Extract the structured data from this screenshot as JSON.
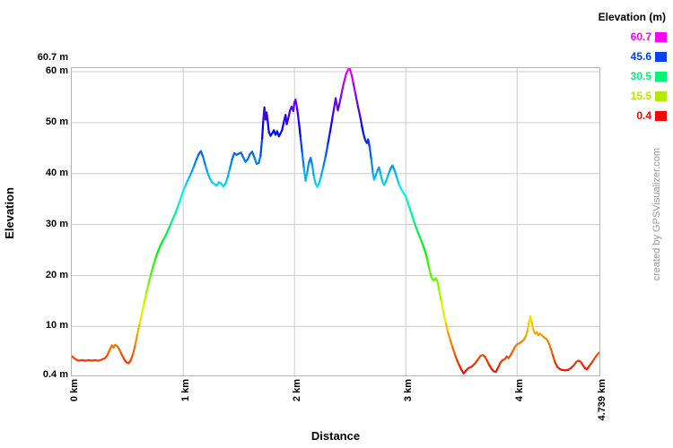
{
  "watermark": "created by GPSVisualizer.com",
  "chart_data": {
    "type": "line",
    "title": "",
    "xlabel": "Distance",
    "ylabel": "Elevation",
    "x_unit": "km",
    "y_unit": "m",
    "xlim": [
      0,
      4.739
    ],
    "ylim": [
      0.4,
      60.7
    ],
    "grid": true,
    "x_ticks": [
      {
        "value": 0,
        "label": "0 km"
      },
      {
        "value": 1,
        "label": "1 km"
      },
      {
        "value": 2,
        "label": "2 km"
      },
      {
        "value": 3,
        "label": "3 km"
      },
      {
        "value": 4,
        "label": "4 km"
      },
      {
        "value": 4.739,
        "label": "4.739 km"
      }
    ],
    "y_ticks": [
      {
        "value": 60.7,
        "label": "60.7 m"
      },
      {
        "value": 60,
        "label": "60 m"
      },
      {
        "value": 50,
        "label": "50 m"
      },
      {
        "value": 40,
        "label": "40 m"
      },
      {
        "value": 30,
        "label": "30 m"
      },
      {
        "value": 20,
        "label": "20 m"
      },
      {
        "value": 10,
        "label": "10 m"
      },
      {
        "value": 0.4,
        "label": "0.4 m"
      }
    ],
    "grid_x_km": [
      1,
      2,
      3,
      4
    ],
    "grid_y_m": [
      10,
      20,
      30,
      40,
      50,
      60
    ],
    "grid_color": "#cccccc",
    "border_color": "#b3b3b3",
    "color_scale": {
      "min_value": 0.4,
      "max_value": 60.7,
      "min_hue": 0,
      "max_hue": 300
    },
    "legend": {
      "title": "Elevation (m)",
      "position": "top-right",
      "entries": [
        {
          "label": "60.7",
          "color": "#ff00ff"
        },
        {
          "label": "45.6",
          "color": "#0040ff"
        },
        {
          "label": "30.5",
          "color": "#00f473"
        },
        {
          "label": "15.5",
          "color": "#b5e800"
        },
        {
          "label": "0.4",
          "color": "#ff0000"
        }
      ]
    },
    "profile_xy_km_m": [
      [
        0.0,
        4.2
      ],
      [
        0.02,
        3.8
      ],
      [
        0.04,
        3.5
      ],
      [
        0.06,
        3.3
      ],
      [
        0.09,
        3.4
      ],
      [
        0.12,
        3.3
      ],
      [
        0.15,
        3.4
      ],
      [
        0.18,
        3.3
      ],
      [
        0.21,
        3.4
      ],
      [
        0.24,
        3.3
      ],
      [
        0.27,
        3.5
      ],
      [
        0.3,
        3.8
      ],
      [
        0.32,
        4.4
      ],
      [
        0.34,
        5.4
      ],
      [
        0.36,
        6.3
      ],
      [
        0.375,
        5.9
      ],
      [
        0.39,
        6.4
      ],
      [
        0.41,
        6.1
      ],
      [
        0.43,
        5.4
      ],
      [
        0.45,
        4.4
      ],
      [
        0.47,
        3.6
      ],
      [
        0.49,
        3.0
      ],
      [
        0.51,
        2.8
      ],
      [
        0.53,
        3.4
      ],
      [
        0.55,
        4.6
      ],
      [
        0.57,
        6.4
      ],
      [
        0.59,
        8.6
      ],
      [
        0.61,
        10.6
      ],
      [
        0.63,
        12.6
      ],
      [
        0.65,
        14.6
      ],
      [
        0.67,
        16.6
      ],
      [
        0.69,
        18.4
      ],
      [
        0.71,
        20.2
      ],
      [
        0.73,
        21.8
      ],
      [
        0.75,
        23.2
      ],
      [
        0.77,
        24.5
      ],
      [
        0.79,
        25.6
      ],
      [
        0.81,
        26.5
      ],
      [
        0.83,
        27.3
      ],
      [
        0.85,
        28.2
      ],
      [
        0.87,
        29.2
      ],
      [
        0.89,
        30.2
      ],
      [
        0.91,
        31.2
      ],
      [
        0.93,
        32.2
      ],
      [
        0.95,
        33.4
      ],
      [
        0.97,
        34.6
      ],
      [
        1.0,
        36.6
      ],
      [
        1.02,
        37.6
      ],
      [
        1.04,
        38.6
      ],
      [
        1.06,
        39.5
      ],
      [
        1.08,
        40.5
      ],
      [
        1.1,
        41.6
      ],
      [
        1.12,
        42.8
      ],
      [
        1.14,
        43.8
      ],
      [
        1.16,
        44.4
      ],
      [
        1.18,
        43.2
      ],
      [
        1.2,
        41.6
      ],
      [
        1.22,
        40.2
      ],
      [
        1.24,
        39.0
      ],
      [
        1.26,
        38.3
      ],
      [
        1.28,
        38.0
      ],
      [
        1.3,
        37.6
      ],
      [
        1.32,
        38.3
      ],
      [
        1.34,
        38.1
      ],
      [
        1.36,
        37.5
      ],
      [
        1.38,
        38.0
      ],
      [
        1.4,
        39.3
      ],
      [
        1.42,
        41.0
      ],
      [
        1.44,
        42.8
      ],
      [
        1.46,
        44.0
      ],
      [
        1.48,
        43.7
      ],
      [
        1.5,
        43.9
      ],
      [
        1.52,
        44.1
      ],
      [
        1.54,
        43.2
      ],
      [
        1.56,
        42.3
      ],
      [
        1.58,
        42.8
      ],
      [
        1.6,
        43.8
      ],
      [
        1.62,
        44.3
      ],
      [
        1.64,
        43.2
      ],
      [
        1.66,
        41.9
      ],
      [
        1.68,
        42.1
      ],
      [
        1.695,
        43.5
      ],
      [
        1.71,
        47.0
      ],
      [
        1.72,
        50.5
      ],
      [
        1.73,
        53.0
      ],
      [
        1.74,
        50.6
      ],
      [
        1.75,
        52.0
      ],
      [
        1.76,
        50.2
      ],
      [
        1.77,
        48.2
      ],
      [
        1.785,
        47.4
      ],
      [
        1.8,
        47.9
      ],
      [
        1.815,
        48.5
      ],
      [
        1.83,
        47.6
      ],
      [
        1.845,
        48.3
      ],
      [
        1.86,
        47.3
      ],
      [
        1.875,
        47.9
      ],
      [
        1.89,
        48.6
      ],
      [
        1.905,
        50.2
      ],
      [
        1.92,
        51.5
      ],
      [
        1.93,
        49.7
      ],
      [
        1.945,
        50.9
      ],
      [
        1.96,
        52.4
      ],
      [
        1.975,
        53.1
      ],
      [
        1.99,
        52.3
      ],
      [
        2.0,
        54.0
      ],
      [
        2.01,
        54.5
      ],
      [
        2.025,
        52.6
      ],
      [
        2.04,
        50.0
      ],
      [
        2.055,
        47.0
      ],
      [
        2.07,
        44.0
      ],
      [
        2.085,
        41.0
      ],
      [
        2.1,
        38.6
      ],
      [
        2.115,
        40.3
      ],
      [
        2.13,
        42.2
      ],
      [
        2.145,
        43.1
      ],
      [
        2.16,
        41.6
      ],
      [
        2.175,
        39.4
      ],
      [
        2.19,
        38.0
      ],
      [
        2.205,
        37.4
      ],
      [
        2.22,
        38.0
      ],
      [
        2.24,
        39.6
      ],
      [
        2.26,
        41.4
      ],
      [
        2.28,
        43.4
      ],
      [
        2.3,
        45.8
      ],
      [
        2.32,
        48.2
      ],
      [
        2.34,
        50.8
      ],
      [
        2.355,
        52.8
      ],
      [
        2.37,
        54.8
      ],
      [
        2.38,
        53.6
      ],
      [
        2.39,
        52.4
      ],
      [
        2.405,
        53.8
      ],
      [
        2.42,
        55.4
      ],
      [
        2.435,
        57.0
      ],
      [
        2.45,
        58.4
      ],
      [
        2.465,
        59.6
      ],
      [
        2.48,
        60.3
      ],
      [
        2.49,
        60.7
      ],
      [
        2.5,
        60.4
      ],
      [
        2.515,
        59.2
      ],
      [
        2.53,
        57.6
      ],
      [
        2.55,
        55.4
      ],
      [
        2.57,
        53.2
      ],
      [
        2.59,
        51.2
      ],
      [
        2.605,
        49.4
      ],
      [
        2.62,
        47.8
      ],
      [
        2.635,
        46.6
      ],
      [
        2.65,
        46.0
      ],
      [
        2.662,
        46.7
      ],
      [
        2.675,
        45.2
      ],
      [
        2.69,
        42.8
      ],
      [
        2.705,
        40.0
      ],
      [
        2.715,
        38.8
      ],
      [
        2.73,
        39.6
      ],
      [
        2.745,
        40.6
      ],
      [
        2.76,
        41.2
      ],
      [
        2.775,
        39.8
      ],
      [
        2.79,
        38.4
      ],
      [
        2.805,
        37.8
      ],
      [
        2.82,
        38.4
      ],
      [
        2.84,
        39.6
      ],
      [
        2.86,
        40.8
      ],
      [
        2.88,
        41.6
      ],
      [
        2.9,
        40.6
      ],
      [
        2.92,
        39.2
      ],
      [
        2.94,
        37.8
      ],
      [
        2.96,
        36.9
      ],
      [
        2.98,
        36.2
      ],
      [
        3.0,
        35.5
      ],
      [
        3.02,
        34.2
      ],
      [
        3.05,
        32.2
      ],
      [
        3.08,
        30.2
      ],
      [
        3.11,
        28.4
      ],
      [
        3.14,
        26.8
      ],
      [
        3.17,
        25.0
      ],
      [
        3.19,
        23.4
      ],
      [
        3.21,
        21.4
      ],
      [
        3.23,
        19.6
      ],
      [
        3.25,
        19.0
      ],
      [
        3.27,
        19.5
      ],
      [
        3.285,
        18.8
      ],
      [
        3.3,
        17.0
      ],
      [
        3.32,
        14.8
      ],
      [
        3.34,
        12.6
      ],
      [
        3.36,
        10.6
      ],
      [
        3.38,
        8.8
      ],
      [
        3.4,
        7.3
      ],
      [
        3.42,
        5.9
      ],
      [
        3.44,
        4.6
      ],
      [
        3.46,
        3.4
      ],
      [
        3.48,
        2.4
      ],
      [
        3.5,
        1.5
      ],
      [
        3.52,
        0.8
      ],
      [
        3.54,
        1.3
      ],
      [
        3.56,
        1.8
      ],
      [
        3.59,
        2.1
      ],
      [
        3.62,
        2.7
      ],
      [
        3.65,
        3.6
      ],
      [
        3.67,
        4.2
      ],
      [
        3.69,
        4.4
      ],
      [
        3.71,
        4.1
      ],
      [
        3.73,
        3.3
      ],
      [
        3.75,
        2.4
      ],
      [
        3.77,
        1.7
      ],
      [
        3.79,
        1.2
      ],
      [
        3.81,
        1.1
      ],
      [
        3.83,
        2.0
      ],
      [
        3.85,
        2.9
      ],
      [
        3.87,
        3.4
      ],
      [
        3.89,
        3.6
      ],
      [
        3.905,
        4.1
      ],
      [
        3.92,
        3.8
      ],
      [
        3.94,
        4.3
      ],
      [
        3.96,
        5.1
      ],
      [
        3.98,
        6.0
      ],
      [
        4.0,
        6.5
      ],
      [
        4.02,
        6.7
      ],
      [
        4.04,
        7.0
      ],
      [
        4.06,
        7.4
      ],
      [
        4.08,
        8.2
      ],
      [
        4.095,
        9.4
      ],
      [
        4.11,
        11.2
      ],
      [
        4.12,
        12.0
      ],
      [
        4.13,
        10.9
      ],
      [
        4.145,
        9.4
      ],
      [
        4.16,
        8.6
      ],
      [
        4.175,
        8.9
      ],
      [
        4.19,
        8.3
      ],
      [
        4.205,
        8.6
      ],
      [
        4.22,
        8.3
      ],
      [
        4.24,
        7.9
      ],
      [
        4.26,
        7.6
      ],
      [
        4.28,
        7.0
      ],
      [
        4.3,
        5.8
      ],
      [
        4.32,
        4.4
      ],
      [
        4.34,
        3.0
      ],
      [
        4.36,
        2.1
      ],
      [
        4.38,
        1.7
      ],
      [
        4.4,
        1.5
      ],
      [
        4.43,
        1.4
      ],
      [
        4.46,
        1.5
      ],
      [
        4.48,
        1.8
      ],
      [
        4.51,
        2.4
      ],
      [
        4.53,
        3.0
      ],
      [
        4.55,
        3.3
      ],
      [
        4.57,
        3.1
      ],
      [
        4.59,
        2.4
      ],
      [
        4.61,
        1.8
      ],
      [
        4.625,
        1.6
      ],
      [
        4.64,
        2.0
      ],
      [
        4.66,
        2.6
      ],
      [
        4.68,
        3.2
      ],
      [
        4.7,
        3.9
      ],
      [
        4.72,
        4.5
      ],
      [
        4.739,
        4.9
      ]
    ]
  }
}
